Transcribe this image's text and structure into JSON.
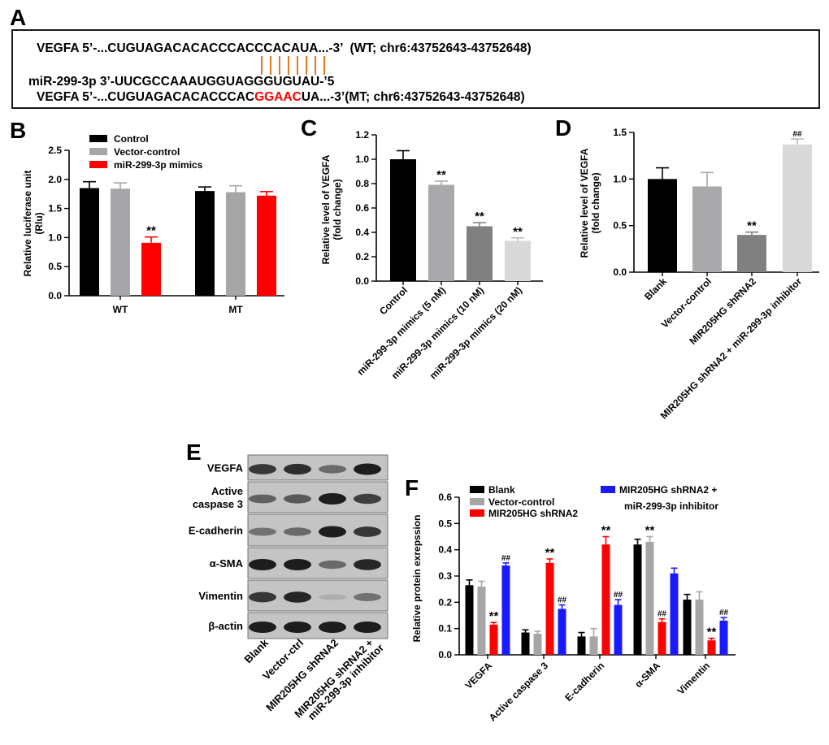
{
  "panels": {
    "A": {
      "letter": "A",
      "vegfa_wt_prefix": "VEGFA 5’-...CUGUAGACACACCCACCCACAUA...-3’",
      "vegfa_wt_suffix": "(WT; chr6:43752643-43752648)",
      "mirna": "miR-299-3p 3’-UUCGCCAAAUGGUAGGGUGUAU-’5",
      "vegfa_mt_prefix": "VEGFA 5’-...CUGUAGACACACCCAC",
      "vegfa_mt_mutation": "GGAAC",
      "vegfa_mt_suffix": "UA...-3’(MT; chr6:43752643-43752648)"
    },
    "B": {
      "letter": "B"
    },
    "C": {
      "letter": "C"
    },
    "D": {
      "letter": "D"
    },
    "E": {
      "letter": "E"
    },
    "F": {
      "letter": "F"
    }
  },
  "colors": {
    "black": "#000000",
    "gray": "#a6a6a8",
    "red": "#ff0000",
    "blue": "#1a1aff",
    "dark_gray": "#808080",
    "light_gray": "#d9d9d9",
    "mid_gray": "#a9a9ab",
    "orange_line": "#e07c1b",
    "mutation_red": "#ff0000"
  },
  "chart_data": [
    {
      "id": "B",
      "type": "bar",
      "categories": [
        "WT",
        "MT"
      ],
      "series": [
        {
          "name": "Control",
          "values": [
            1.85,
            1.8
          ],
          "errors": [
            0.11,
            0.07
          ],
          "color": "#000000"
        },
        {
          "name": "Vector-control",
          "values": [
            1.84,
            1.78
          ],
          "errors": [
            0.1,
            0.11
          ],
          "color": "#a6a6a8"
        },
        {
          "name": "miR-299-3p mimics",
          "values": [
            0.91,
            1.72
          ],
          "errors": [
            0.1,
            0.07
          ],
          "color": "#ff0000"
        }
      ],
      "annotations": [
        {
          "category": 0,
          "series": 2,
          "text": "**"
        }
      ],
      "ylabel_lines": [
        "Relative luciferase unit",
        "(Rlu)"
      ],
      "ylim": [
        0,
        2.5
      ],
      "yticks": [
        "0.0",
        "0.5",
        "1.0",
        "1.5",
        "2.0",
        "2.5"
      ],
      "legend": "top-left"
    },
    {
      "id": "C",
      "type": "bar",
      "categories": [
        "Control",
        "miR-299-3p mimics (5 nM)",
        "miR-299-3p mimics (10 nM)",
        "miR-299-3p mimics (20 nM)"
      ],
      "values": [
        1.0,
        0.79,
        0.45,
        0.33
      ],
      "errors": [
        0.07,
        0.03,
        0.03,
        0.025
      ],
      "colors": [
        "#000000",
        "#a9a9ab",
        "#808080",
        "#d9d9d9"
      ],
      "annotations": [
        "",
        "**",
        "**",
        "**"
      ],
      "ylabel_lines": [
        "Relative level of VEGFA",
        "(fold change)"
      ],
      "ylim": [
        0,
        1.2
      ],
      "yticks": [
        "0.0",
        "0.2",
        "0.4",
        "0.6",
        "0.8",
        "1.0",
        "1.2"
      ]
    },
    {
      "id": "D",
      "type": "bar",
      "categories": [
        "Blank",
        "Vector-control",
        "MIR205HG shRNA2",
        "MIR205HG shRNA2 + miR-299-3p inhibitor"
      ],
      "values": [
        1.0,
        0.92,
        0.4,
        1.37
      ],
      "errors": [
        0.12,
        0.15,
        0.03,
        0.06
      ],
      "colors": [
        "#000000",
        "#a9a9ab",
        "#808080",
        "#d9d9d9"
      ],
      "annotations": [
        "",
        "",
        "**",
        "##"
      ],
      "ylabel_lines": [
        "Relative level of VEGFA",
        "(fold change)"
      ],
      "ylim": [
        0,
        1.5
      ],
      "yticks": [
        "0.0",
        "0.5",
        "1.0",
        "1.5"
      ]
    },
    {
      "id": "F",
      "type": "bar",
      "categories": [
        "VEGFA",
        "Active caspase 3",
        "E-cadherin",
        "α-SMA",
        "Vimentin"
      ],
      "series": [
        {
          "name": "Blank",
          "values": [
            0.265,
            0.085,
            0.07,
            0.42,
            0.21
          ],
          "errors": [
            0.02,
            0.01,
            0.015,
            0.02,
            0.02
          ],
          "color": "#000000"
        },
        {
          "name": "Vector-control",
          "values": [
            0.26,
            0.08,
            0.07,
            0.43,
            0.21
          ],
          "errors": [
            0.02,
            0.01,
            0.03,
            0.02,
            0.03
          ],
          "color": "#a6a6a8"
        },
        {
          "name": "MIR205HG shRNA2",
          "values": [
            0.115,
            0.35,
            0.42,
            0.125,
            0.055
          ],
          "errors": [
            0.008,
            0.015,
            0.03,
            0.012,
            0.008
          ],
          "color": "#ff0000"
        },
        {
          "name": "MIR205HG shRNA2 + miR-299-3p inhibitor",
          "values": [
            0.34,
            0.175,
            0.19,
            0.31,
            0.13
          ],
          "errors": [
            0.01,
            0.015,
            0.02,
            0.02,
            0.012
          ],
          "color": "#1a1aff"
        }
      ],
      "annotations": [
        {
          "category": 0,
          "series": 2,
          "text": "**"
        },
        {
          "category": 0,
          "series": 3,
          "text": "##"
        },
        {
          "category": 1,
          "series": 2,
          "text": "**"
        },
        {
          "category": 1,
          "series": 3,
          "text": "##"
        },
        {
          "category": 2,
          "series": 2,
          "text": "**"
        },
        {
          "category": 2,
          "series": 3,
          "text": "##"
        },
        {
          "category": 3,
          "series": 1,
          "text": "**"
        },
        {
          "category": 3,
          "series": 2,
          "text": "##"
        },
        {
          "category": 4,
          "series": 2,
          "text": "**"
        },
        {
          "category": 4,
          "series": 3,
          "text": "##"
        }
      ],
      "ylabel": "Relative protein exrepssion",
      "ylim": [
        0,
        0.6
      ],
      "yticks": [
        "0.0",
        "0.1",
        "0.2",
        "0.3",
        "0.4",
        "0.5",
        "0.6"
      ],
      "legend_items": [
        "Blank",
        "Vector-control",
        "MIR205HG shRNA2",
        "MIR205HG shRNA2 +",
        "miR-299-3p inhibitor"
      ]
    }
  ],
  "blot": {
    "proteins": [
      "VEGFA",
      "Active caspase 3",
      "E-cadherin",
      "α-SMA",
      "Vimentin",
      "β-actin"
    ],
    "protein_label_lines": [
      [
        "VEGFA"
      ],
      [
        "Active",
        "caspase 3"
      ],
      [
        "E-cadherin"
      ],
      [
        "α-SMA"
      ],
      [
        "Vimentin"
      ],
      [
        "β-actin"
      ]
    ],
    "lanes": [
      "Blank",
      "Vector-ctrl",
      "MIR205HG shRNA2",
      "MIR205HG shRNA2 + miR-299-3p inhibitor"
    ],
    "lane_label_lines": [
      [
        "Blank"
      ],
      [
        "Vector-ctrl"
      ],
      [
        "MIR205HG shRNA2"
      ],
      [
        "MIR205HG shRNA2 +",
        "miR-299-3p inhibitor"
      ]
    ],
    "band_intensity": [
      [
        0.85,
        0.9,
        0.55,
        1.0
      ],
      [
        0.6,
        0.65,
        1.0,
        0.8
      ],
      [
        0.5,
        0.55,
        1.0,
        0.85
      ],
      [
        1.0,
        1.0,
        0.55,
        0.95
      ],
      [
        0.85,
        0.95,
        0.15,
        0.5
      ],
      [
        1.0,
        1.0,
        1.0,
        1.0
      ]
    ]
  }
}
